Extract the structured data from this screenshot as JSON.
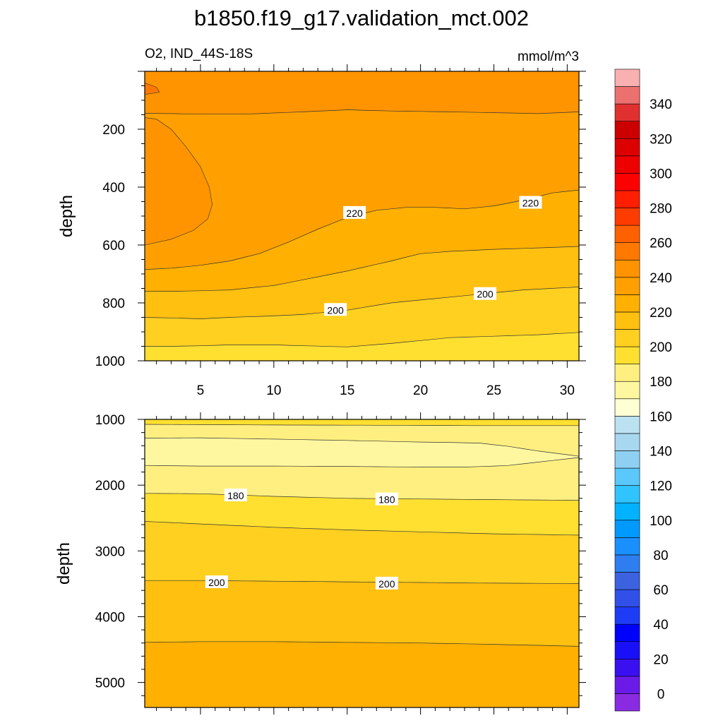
{
  "chart_data": {
    "type": "contour",
    "title": "b1850.f19_g17.validation_mct.002",
    "left_string": "O2, IND_44S-18S",
    "right_string": "mmol/m^3",
    "colorbar": {
      "levels": [
        0,
        10,
        20,
        30,
        40,
        50,
        60,
        70,
        80,
        90,
        100,
        110,
        120,
        130,
        140,
        150,
        160,
        170,
        180,
        190,
        200,
        210,
        220,
        230,
        240,
        250,
        260,
        270,
        280,
        290,
        300,
        310,
        320,
        330,
        340,
        350
      ],
      "tick_labels": [
        "0",
        "20",
        "40",
        "60",
        "80",
        "100",
        "120",
        "140",
        "160",
        "180",
        "200",
        "220",
        "240",
        "260",
        "280",
        "300",
        "320",
        "340"
      ],
      "colors": [
        "#8a2be2",
        "#6a1be8",
        "#3a10f0",
        "#1a10f8",
        "#0000ff",
        "#1e3cf5",
        "#3050e8",
        "#3d62e0",
        "#2e7ef0",
        "#1a90ff",
        "#009aff",
        "#00b2ff",
        "#30c4ff",
        "#5ac8fa",
        "#8fd0f2",
        "#a8d8ef",
        "#bce2f2",
        "#ffffd4",
        "#fff7a0",
        "#ffef80",
        "#ffe030",
        "#ffd020",
        "#ffc010",
        "#ffb000",
        "#ffa000",
        "#ff9400",
        "#ff7800",
        "#ff6000",
        "#ff3c00",
        "#ff1e00",
        "#ff0000",
        "#ee0000",
        "#dd0000",
        "#cc0000",
        "#e03030",
        "#ec7070",
        "#f8b0b0"
      ]
    },
    "panels": [
      {
        "ylabel": "depth",
        "x_range": [
          1.2,
          30.8
        ],
        "y_range": [
          0,
          1000
        ],
        "x_ticks": [
          5,
          10,
          15,
          20,
          25,
          30
        ],
        "y_ticks": [
          200,
          400,
          600,
          800,
          1000
        ],
        "contour_labels": [
          {
            "text": "220",
            "x": 15.5,
            "y": 490
          },
          {
            "text": "220",
            "x": 27.5,
            "y": 455
          },
          {
            "text": "200",
            "x": 14.2,
            "y": 825
          },
          {
            "text": "200",
            "x": 24.4,
            "y": 770
          }
        ]
      },
      {
        "ylabel": "depth",
        "x_range": [
          1.2,
          30.8
        ],
        "y_range": [
          1000,
          5380
        ],
        "y_ticks": [
          1000,
          2000,
          3000,
          4000,
          5000
        ],
        "contour_labels": [
          {
            "text": "180",
            "x": 7.4,
            "y": 2160
          },
          {
            "text": "180",
            "x": 17.7,
            "y": 2220
          },
          {
            "text": "200",
            "x": 6.1,
            "y": 3480
          },
          {
            "text": "200",
            "x": 17.7,
            "y": 3500
          }
        ]
      }
    ]
  }
}
